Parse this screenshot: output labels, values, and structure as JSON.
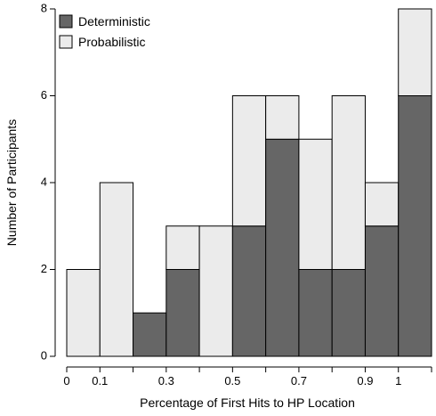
{
  "chart_data": {
    "type": "bar",
    "stacked": true,
    "bins": [
      [
        0.0,
        0.1
      ],
      [
        0.1,
        0.2
      ],
      [
        0.2,
        0.3
      ],
      [
        0.3,
        0.4
      ],
      [
        0.4,
        0.5
      ],
      [
        0.5,
        0.6
      ],
      [
        0.6,
        0.7
      ],
      [
        0.7,
        0.8
      ],
      [
        0.8,
        0.9
      ],
      [
        0.9,
        1.0
      ],
      [
        1.0,
        1.1
      ]
    ],
    "series": [
      {
        "name": "Deterministic",
        "color": "#666666",
        "values": [
          0,
          0,
          1,
          2,
          0,
          3,
          5,
          2,
          2,
          3,
          6
        ]
      },
      {
        "name": "Probabilistic",
        "color": "#ebebeb",
        "values": [
          2,
          4,
          0,
          1,
          3,
          3,
          1,
          3,
          4,
          1,
          2
        ]
      }
    ],
    "xlabel": "Percentage of First Hits to HP Location",
    "ylabel": "Number of Participants",
    "xlim": [
      0,
      1.1
    ],
    "ylim": [
      0,
      8
    ],
    "x_ticks": [
      {
        "value": 0,
        "label": "0"
      },
      {
        "value": 0.1,
        "label": "0.1"
      },
      {
        "value": 0.3,
        "label": "0.3"
      },
      {
        "value": 0.5,
        "label": "0.5"
      },
      {
        "value": 0.7,
        "label": "0.7"
      },
      {
        "value": 0.9,
        "label": "0.9"
      },
      {
        "value": 1,
        "label": "1"
      }
    ],
    "y_ticks": [
      {
        "value": 0,
        "label": "0"
      },
      {
        "value": 2,
        "label": "2"
      },
      {
        "value": 4,
        "label": "4"
      },
      {
        "value": 6,
        "label": "6"
      },
      {
        "value": 8,
        "label": "8"
      }
    ],
    "grid": false,
    "legend_position": "top-left",
    "edge_color": "#000000"
  }
}
